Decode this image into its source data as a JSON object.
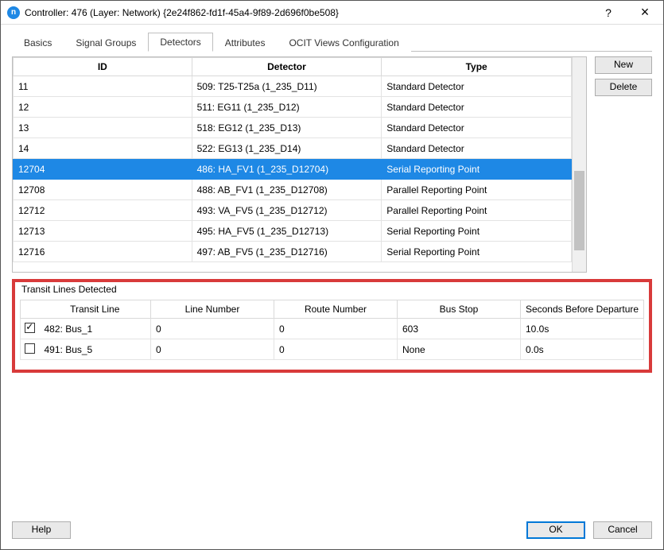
{
  "window": {
    "app_icon_letter": "n",
    "title": "Controller: 476 (Layer: Network) {2e24f862-fd1f-45a4-9f89-2d696f0be508}",
    "help_symbol": "?",
    "close_symbol": "×"
  },
  "tabs": {
    "items": [
      "Basics",
      "Signal Groups",
      "Detectors",
      "Attributes",
      "OCIT Views Configuration"
    ],
    "active_index": 2
  },
  "table": {
    "columns": [
      "ID",
      "Detector",
      "Type"
    ],
    "col_widths": [
      "32%",
      "34%",
      "34%"
    ],
    "selected_row": 4,
    "rows": [
      {
        "id": "11",
        "detector": "509: T25-T25a (1_235_D11)",
        "type": "Standard Detector"
      },
      {
        "id": "12",
        "detector": "511: EG11 (1_235_D12)",
        "type": "Standard Detector"
      },
      {
        "id": "13",
        "detector": "518: EG12 (1_235_D13)",
        "type": "Standard Detector"
      },
      {
        "id": "14",
        "detector": "522: EG13 (1_235_D14)",
        "type": "Standard Detector"
      },
      {
        "id": "12704",
        "detector": "486: HA_FV1 (1_235_D12704)",
        "type": "Serial Reporting Point"
      },
      {
        "id": "12708",
        "detector": "488: AB_FV1 (1_235_D12708)",
        "type": "Parallel Reporting Point"
      },
      {
        "id": "12712",
        "detector": "493: VA_FV5 (1_235_D12712)",
        "type": "Parallel Reporting Point"
      },
      {
        "id": "12713",
        "detector": "495: HA_FV5 (1_235_D12713)",
        "type": "Serial Reporting Point"
      },
      {
        "id": "12716",
        "detector": "497: AB_FV5 (1_235_D12716)",
        "type": "Serial Reporting Point"
      }
    ],
    "scroll": {
      "thumb_top_pct": 53,
      "thumb_height_pct": 37
    }
  },
  "side_buttons": {
    "new_label": "New",
    "delete_label": "Delete"
  },
  "group": {
    "label": "Transit Lines Detected",
    "columns": [
      "",
      "Transit Line",
      "Line Number",
      "Route Number",
      "Bus Stop",
      "Seconds Before Departure"
    ],
    "rows": [
      {
        "checked": true,
        "line": "482: Bus_1",
        "line_no": "0",
        "route_no": "0",
        "bus_stop": "603",
        "seconds": "10.0s"
      },
      {
        "checked": false,
        "line": "491: Bus_5",
        "line_no": "0",
        "route_no": "0",
        "bus_stop": "None",
        "seconds": "0.0s"
      }
    ]
  },
  "footer": {
    "help_label": "Help",
    "ok_label": "OK",
    "cancel_label": "Cancel"
  },
  "colors": {
    "selection": "#1e88e5",
    "highlight_border": "#d83a3a",
    "button_bg": "#e9e9e9",
    "border": "#bfbfbf"
  }
}
